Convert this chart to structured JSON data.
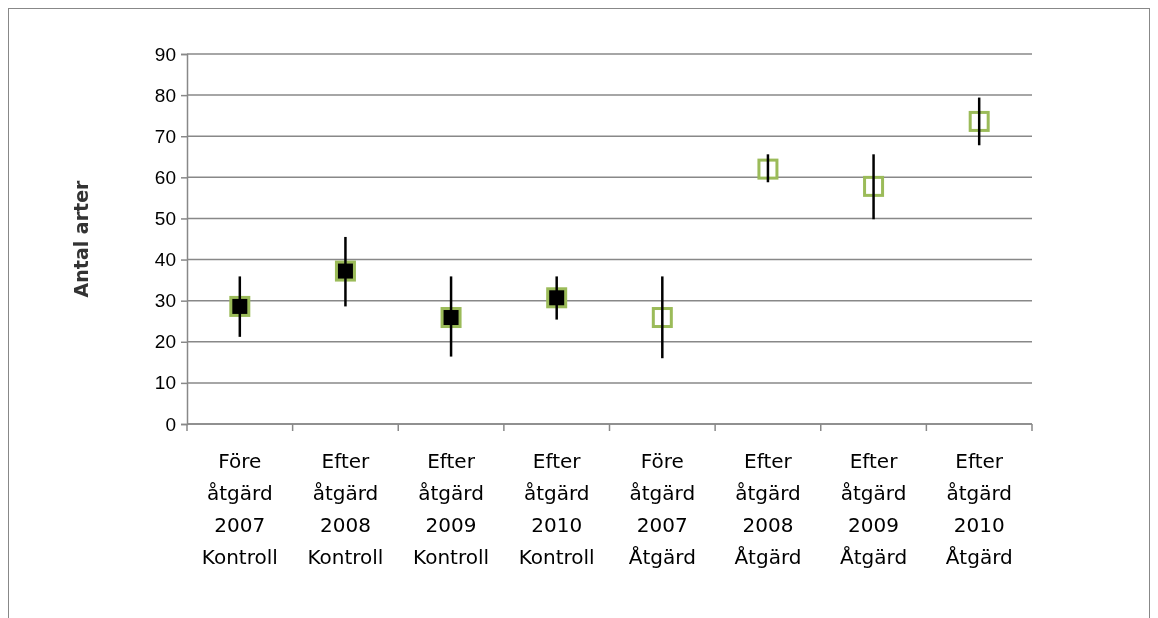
{
  "chart_data": {
    "type": "scatter",
    "ylabel": "Antal arter",
    "categories": [
      "Före åtgärd 2007 Kontroll",
      "Efter åtgärd 2008 Kontroll",
      "Efter åtgärd 2009 Kontroll",
      "Efter åtgärd 2010 Kontroll",
      "Före åtgärd 2007 Åtgärd",
      "Efter åtgärd 2008 Åtgärd",
      "Efter åtgärd 2009 Åtgärd",
      "Efter åtgärd 2010 Åtgärd"
    ],
    "series": [
      {
        "color": "#000000",
        "values": [
          28.6,
          37.2,
          25.9,
          30.7,
          null,
          null,
          null,
          null
        ],
        "errors": [
          [
            21.2,
            35.9
          ],
          [
            28.6,
            45.5
          ],
          [
            16.4,
            35.9
          ],
          [
            25.4,
            35.9
          ],
          null,
          null,
          null,
          null
        ]
      },
      {
        "color": "#9bbb59",
        "values": [
          null,
          null,
          null,
          null,
          25.9,
          62.0,
          57.8,
          73.6
        ],
        "errors": [
          null,
          null,
          null,
          null,
          [
            16.0,
            35.9
          ],
          [
            58.8,
            65.6
          ],
          [
            49.8,
            65.6
          ],
          [
            67.8,
            79.4
          ]
        ]
      }
    ],
    "ylim": [
      0,
      90
    ],
    "yticks": [
      0,
      10,
      20,
      30,
      40,
      50,
      60,
      70,
      80,
      90
    ],
    "grid": "y",
    "marker": "square"
  }
}
